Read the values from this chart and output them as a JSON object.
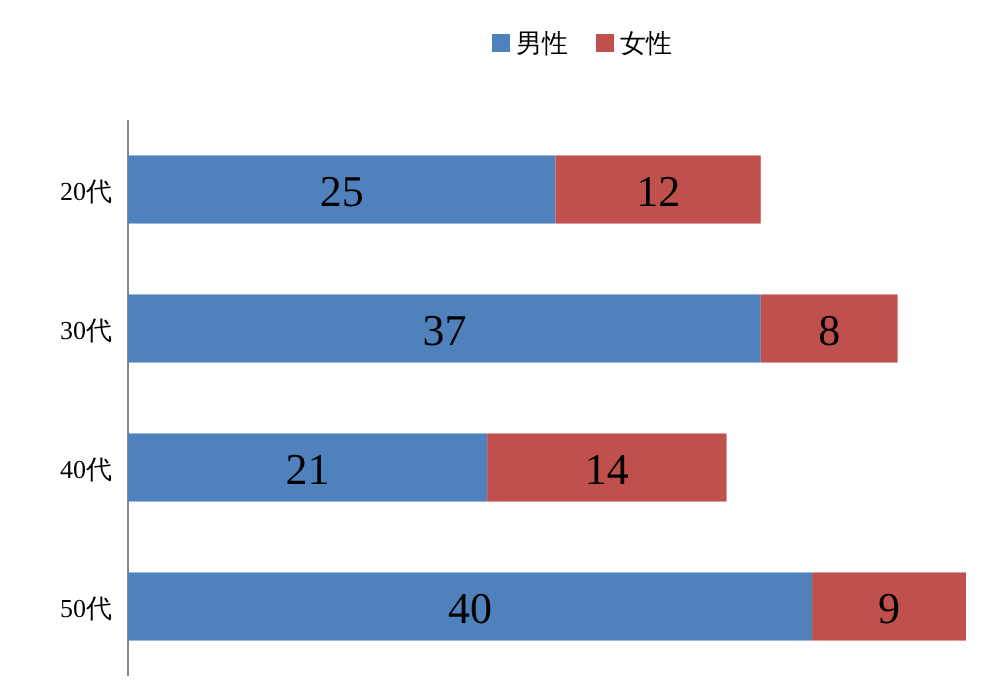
{
  "chart_data": {
    "type": "bar",
    "orientation": "horizontal",
    "stacked": true,
    "categories": [
      "20代",
      "30代",
      "40代",
      "50代"
    ],
    "series": [
      {
        "name": "男性",
        "color": "#4f81bd",
        "values": [
          25,
          37,
          21,
          40
        ]
      },
      {
        "name": "女性",
        "color": "#c0504d",
        "values": [
          12,
          8,
          14,
          9
        ]
      }
    ],
    "data_labels": true,
    "legend": "top",
    "tick_labels": "y"
  }
}
